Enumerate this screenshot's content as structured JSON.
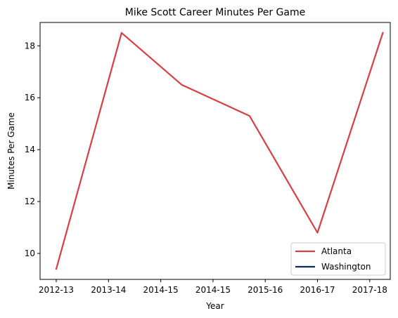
{
  "chart_data": {
    "type": "line",
    "title": "Mike Scott  Career Minutes Per Game",
    "xlabel": "Year",
    "ylabel": "Minutes Per Game",
    "categories": [
      "2012-13",
      "2013-14",
      "2014-15",
      "2014-15",
      "2015-16",
      "2016-17",
      "2017-18"
    ],
    "ylim": [
      9.0,
      18.9
    ],
    "yticks": [
      10,
      12,
      14,
      16,
      18
    ],
    "grid": false,
    "legend_position": "lower-right",
    "series": [
      {
        "name": "Atlanta",
        "color": "#d63f46",
        "points": [
          {
            "x": 0,
            "y": 9.4
          },
          {
            "x": 1.25,
            "y": 18.5
          },
          {
            "x": 2.4,
            "y": 16.5
          },
          {
            "x": 3.7,
            "y": 15.3
          },
          {
            "x": 5.0,
            "y": 10.8
          },
          {
            "x": 6.25,
            "y": 18.5
          }
        ]
      },
      {
        "name": "Washington",
        "color": "#0c2d57",
        "points": []
      }
    ]
  }
}
